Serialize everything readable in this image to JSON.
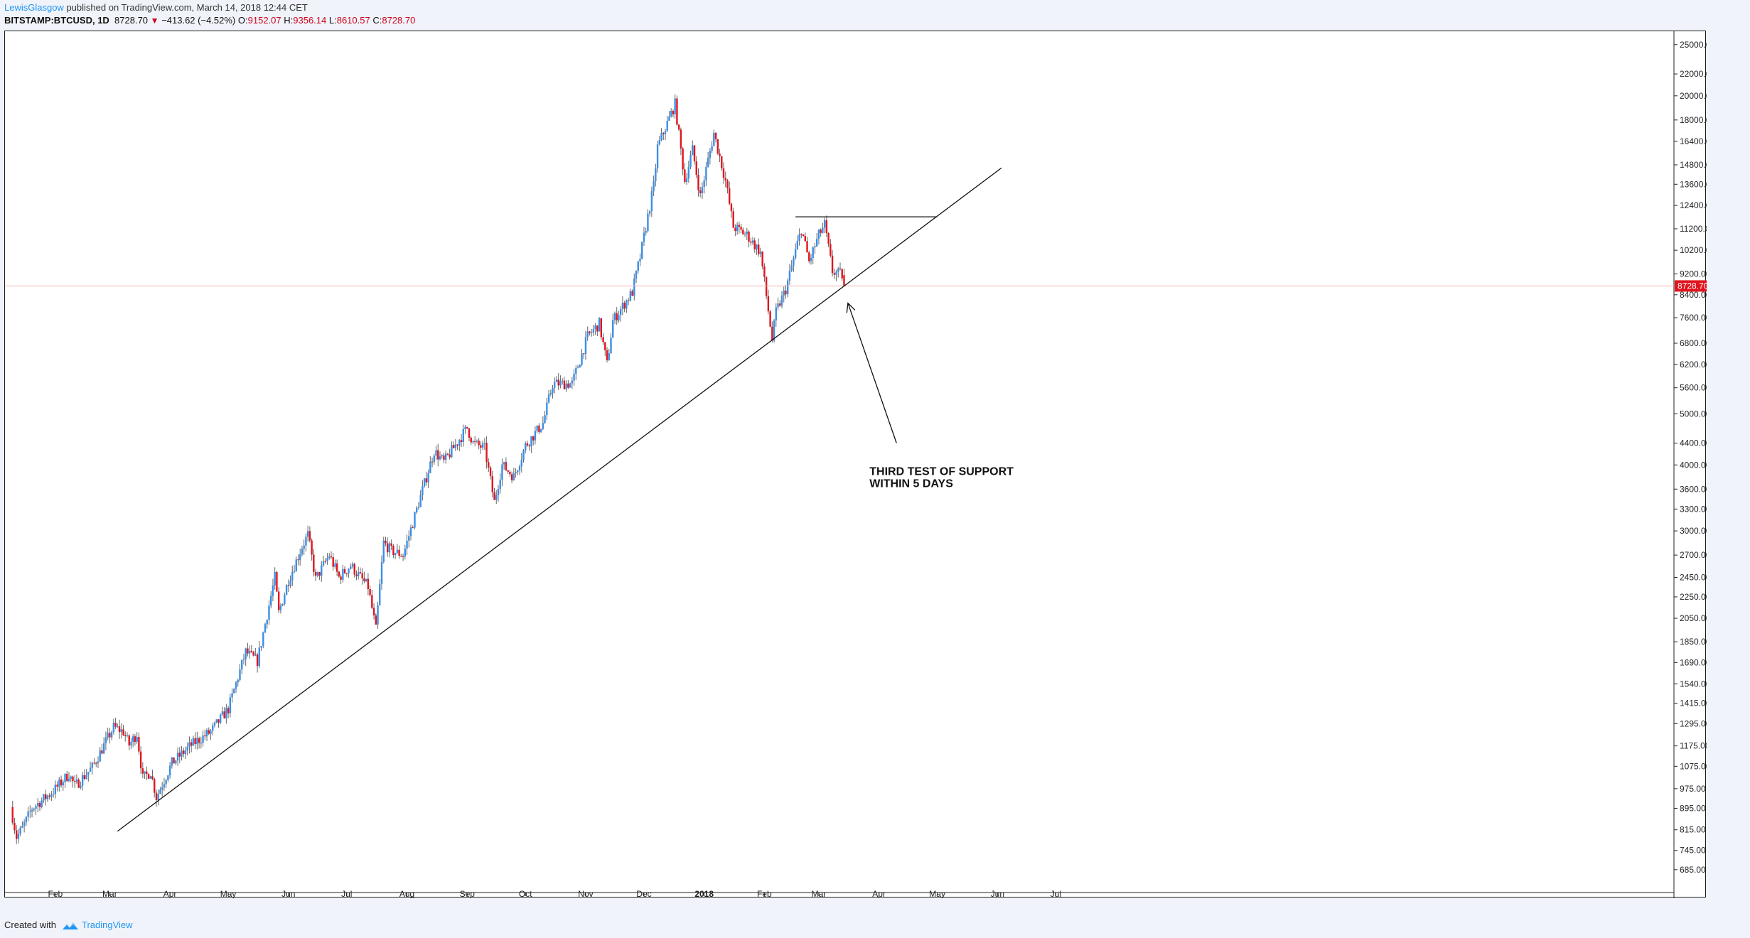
{
  "header": {
    "author": "LewisGlasgow",
    "published": " published on TradingView.com, March 14, 2018 12:44 CET",
    "symbol": "BITSTAMP:BTCUSD, 1D",
    "last": "8728.70",
    "change": "−413.62 (−4.52%)",
    "o_label": "O:",
    "o_value": "9152.07",
    "h_label": "H:",
    "h_value": "9356.14",
    "l_label": "L:",
    "l_value": "8610.57",
    "c_label": "C:",
    "c_value": "8728.70",
    "down_icon": "triangle-down-icon"
  },
  "footer": {
    "created_with": "Created with",
    "brand": "TradingView",
    "logo_icon": "tradingview-logo-icon"
  },
  "colors": {
    "up": "#3a8ee8",
    "down": "#e0141e",
    "price_line": "#f2b0b0",
    "price_badge": "#e0141e",
    "trendline": "#111111"
  },
  "chart_data": {
    "type": "candlestick",
    "symbol": "BITSTAMP:BTCUSD",
    "interval": "1D",
    "scale": "log",
    "ylim": [
      620,
      26500
    ],
    "y_ticks": [
      "25000.00",
      "22000.00",
      "20000.00",
      "18000.00",
      "16400.00",
      "14800.00",
      "13600.00",
      "12400.00",
      "11200.00",
      "10200.00",
      "9200.00",
      "8400.00",
      "7600.00",
      "6800.00",
      "6200.00",
      "5600.00",
      "5000.00",
      "4400.00",
      "4000.00",
      "3600.00",
      "3300.00",
      "3000.00",
      "2700.00",
      "2450.00",
      "2250.00",
      "2050.00",
      "1850.00",
      "1690.00",
      "1540.00",
      "1415.00",
      "1295.00",
      "1175.00",
      "1075.00",
      "975.00",
      "895.00",
      "815.00",
      "745.00",
      "685.00"
    ],
    "x_ticks": [
      {
        "label": "Feb",
        "date": "2017-02-01",
        "bold": false
      },
      {
        "label": "Mar",
        "date": "2017-03-01",
        "bold": false
      },
      {
        "label": "Apr",
        "date": "2017-04-01",
        "bold": false
      },
      {
        "label": "May",
        "date": "2017-05-01",
        "bold": false
      },
      {
        "label": "Jun",
        "date": "2017-06-01",
        "bold": false
      },
      {
        "label": "Jul",
        "date": "2017-07-01",
        "bold": false
      },
      {
        "label": "Aug",
        "date": "2017-08-01",
        "bold": false
      },
      {
        "label": "Sep",
        "date": "2017-09-01",
        "bold": false
      },
      {
        "label": "Oct",
        "date": "2017-10-01",
        "bold": false
      },
      {
        "label": "Nov",
        "date": "2017-11-01",
        "bold": false
      },
      {
        "label": "Dec",
        "date": "2017-12-01",
        "bold": false
      },
      {
        "label": "2018",
        "date": "2018-01-01",
        "bold": true
      },
      {
        "label": "Feb",
        "date": "2018-02-01",
        "bold": false
      },
      {
        "label": "Mar",
        "date": "2018-03-01",
        "bold": false
      },
      {
        "label": "Apr",
        "date": "2018-04-01",
        "bold": false
      },
      {
        "label": "May",
        "date": "2018-05-01",
        "bold": false
      },
      {
        "label": "Jun",
        "date": "2018-06-01",
        "bold": false
      },
      {
        "label": "Jul",
        "date": "2018-07-01",
        "bold": false
      }
    ],
    "close_path": [
      [
        "2017-01-09",
        900
      ],
      [
        "2017-01-12",
        790
      ],
      [
        "2017-01-15",
        820
      ],
      [
        "2017-01-20",
        895
      ],
      [
        "2017-01-31",
        965
      ],
      [
        "2017-02-08",
        1040
      ],
      [
        "2017-02-11",
        985
      ],
      [
        "2017-02-20",
        1070
      ],
      [
        "2017-03-03",
        1275
      ],
      [
        "2017-03-08",
        1250
      ],
      [
        "2017-03-11",
        1180
      ],
      [
        "2017-03-15",
        1240
      ],
      [
        "2017-03-18",
        1020
      ],
      [
        "2017-03-22",
        1050
      ],
      [
        "2017-03-25",
        940
      ],
      [
        "2017-04-02",
        1090
      ],
      [
        "2017-04-12",
        1180
      ],
      [
        "2017-04-22",
        1250
      ],
      [
        "2017-05-01",
        1380
      ],
      [
        "2017-05-10",
        1770
      ],
      [
        "2017-05-16",
        1700
      ],
      [
        "2017-05-25",
        2450
      ],
      [
        "2017-05-27",
        2100
      ],
      [
        "2017-06-01",
        2420
      ],
      [
        "2017-06-08",
        2800
      ],
      [
        "2017-06-11",
        2950
      ],
      [
        "2017-06-15",
        2430
      ],
      [
        "2017-06-22",
        2700
      ],
      [
        "2017-06-27",
        2450
      ],
      [
        "2017-07-03",
        2580
      ],
      [
        "2017-07-12",
        2350
      ],
      [
        "2017-07-16",
        1950
      ],
      [
        "2017-07-20",
        2850
      ],
      [
        "2017-07-24",
        2750
      ],
      [
        "2017-07-30",
        2700
      ],
      [
        "2017-08-05",
        3200
      ],
      [
        "2017-08-15",
        4250
      ],
      [
        "2017-08-20",
        4050
      ],
      [
        "2017-09-01",
        4700
      ],
      [
        "2017-09-04",
        4400
      ],
      [
        "2017-09-10",
        4300
      ],
      [
        "2017-09-15",
        3400
      ],
      [
        "2017-09-19",
        4000
      ],
      [
        "2017-09-25",
        3800
      ],
      [
        "2017-10-01",
        4350
      ],
      [
        "2017-10-10",
        4800
      ],
      [
        "2017-10-15",
        5700
      ],
      [
        "2017-10-25",
        5700
      ],
      [
        "2017-11-02",
        7000
      ],
      [
        "2017-11-08",
        7400
      ],
      [
        "2017-11-12",
        6200
      ],
      [
        "2017-11-15",
        7500
      ],
      [
        "2017-11-25",
        8500
      ],
      [
        "2017-11-29",
        9900
      ],
      [
        "2017-12-06",
        13500
      ],
      [
        "2017-12-08",
        16000
      ],
      [
        "2017-12-17",
        19300
      ],
      [
        "2017-12-22",
        13800
      ],
      [
        "2017-12-26",
        15800
      ],
      [
        "2017-12-30",
        12900
      ],
      [
        "2018-01-06",
        17000
      ],
      [
        "2018-01-12",
        13800
      ],
      [
        "2018-01-16",
        11300
      ],
      [
        "2018-01-23",
        10900
      ],
      [
        "2018-01-30",
        10100
      ],
      [
        "2018-02-05",
        6900
      ],
      [
        "2018-02-07",
        7800
      ],
      [
        "2018-02-12",
        8600
      ],
      [
        "2018-02-20",
        11200
      ],
      [
        "2018-02-24",
        9700
      ],
      [
        "2018-03-01",
        10900
      ],
      [
        "2018-03-04",
        11400
      ],
      [
        "2018-03-08",
        9300
      ],
      [
        "2018-03-13",
        9150
      ],
      [
        "2018-03-14",
        8728.7
      ]
    ],
    "last_candle": {
      "date": "2018-03-14",
      "open": 9152.07,
      "high": 9356.14,
      "low": 8610.57,
      "close": 8728.7
    },
    "current_price": 8728.7,
    "current_price_label": "8728.70",
    "trendline": [
      [
        "2017-03-05",
        810
      ],
      [
        "2018-06-03",
        14600
      ]
    ],
    "resistance": {
      "from": "2018-02-17",
      "to": "2018-05-01",
      "price": 11800
    },
    "annotation": {
      "lines": [
        "THIRD TEST OF SUPPORT",
        "WITHIN 5 DAYS"
      ],
      "arrow_from": [
        "2018-04-10",
        4400
      ],
      "arrow_to": [
        "2018-03-16",
        8100
      ]
    }
  }
}
